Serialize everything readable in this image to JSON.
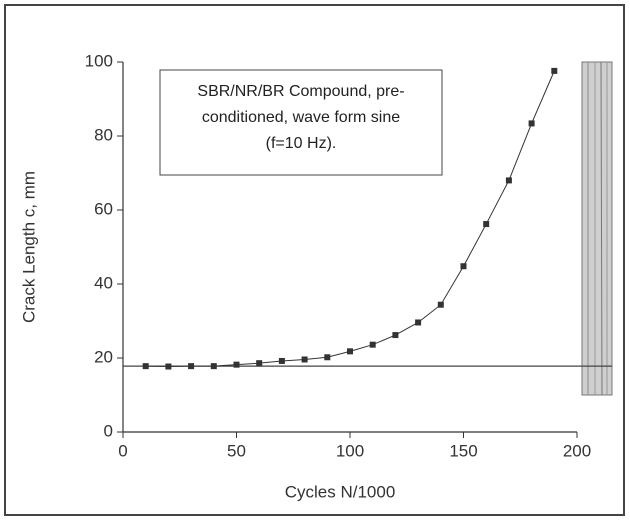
{
  "chart_data": {
    "type": "line",
    "annotation": [
      "SBR/NR/BR Compound, pre-",
      "conditioned, wave form sine",
      "(f=10 Hz)."
    ],
    "xlabel": "Cycles N/1000",
    "ylabel": "Crack Length c, mm",
    "x": [
      10,
      20,
      30,
      40,
      50,
      60,
      70,
      80,
      90,
      100,
      110,
      120,
      130,
      140,
      150,
      160,
      170,
      180,
      190
    ],
    "series": [
      {
        "color": "#333333",
        "values": [
          17.8,
          17.7,
          17.8,
          17.8,
          18.2,
          18.6,
          19.2,
          19.6,
          20.2,
          21.8,
          23.6,
          26.2,
          29.6,
          34.4,
          44.8,
          56.2,
          68,
          83.4,
          97.6
        ]
      }
    ],
    "reference_y": 17.8,
    "xlim": [
      0,
      200
    ],
    "xticks": [
      0,
      50,
      100,
      150,
      200
    ],
    "ylim": [
      0,
      100
    ],
    "yticks": [
      0,
      20,
      40,
      60,
      80,
      100
    ]
  }
}
